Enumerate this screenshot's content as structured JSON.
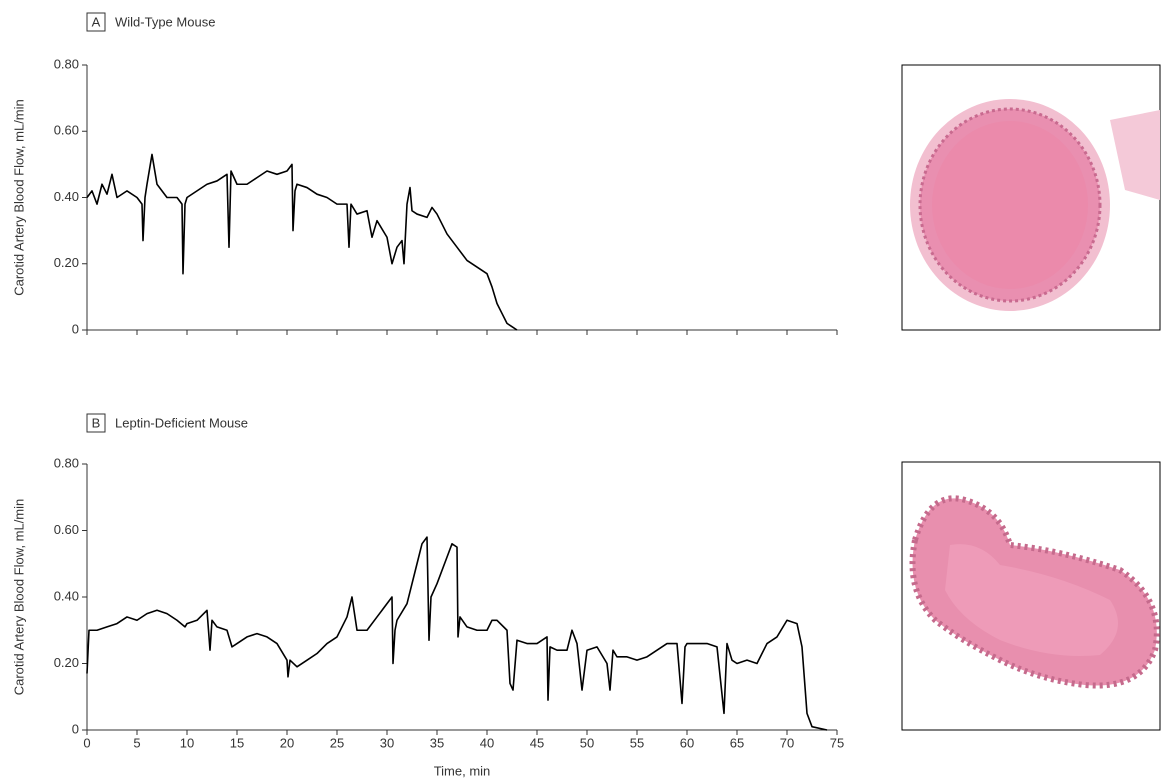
{
  "chart_data": [
    {
      "type": "line",
      "panel": "A",
      "title": "Wild-Type Mouse",
      "ylabel": "Carotid Artery Blood Flow, mL/min",
      "x": [
        0,
        0.5,
        1,
        1.5,
        2,
        2.5,
        3,
        4,
        5,
        5.5,
        5.6,
        5.8,
        6,
        6.5,
        7,
        8,
        9,
        9.5,
        9.6,
        9.8,
        10,
        11,
        12,
        13,
        14,
        14.2,
        14.4,
        15,
        16,
        17,
        18,
        19,
        20,
        20.5,
        20.6,
        20.8,
        21,
        22,
        23,
        24,
        25,
        26,
        26.2,
        26.4,
        27,
        28,
        28.5,
        29,
        30,
        30.5,
        31,
        31.5,
        31.7,
        32,
        32.3,
        32.5,
        33,
        34,
        34.5,
        35,
        36,
        37,
        38,
        39,
        40,
        40.5,
        41,
        41.5,
        42,
        42.5,
        43
      ],
      "values": [
        0.4,
        0.42,
        0.38,
        0.44,
        0.41,
        0.47,
        0.4,
        0.42,
        0.4,
        0.38,
        0.27,
        0.4,
        0.44,
        0.53,
        0.44,
        0.4,
        0.4,
        0.38,
        0.17,
        0.38,
        0.4,
        0.42,
        0.44,
        0.45,
        0.47,
        0.25,
        0.48,
        0.44,
        0.44,
        0.46,
        0.48,
        0.47,
        0.48,
        0.5,
        0.3,
        0.42,
        0.44,
        0.43,
        0.41,
        0.4,
        0.38,
        0.38,
        0.25,
        0.38,
        0.35,
        0.36,
        0.28,
        0.33,
        0.28,
        0.2,
        0.25,
        0.27,
        0.2,
        0.38,
        0.43,
        0.36,
        0.35,
        0.34,
        0.37,
        0.35,
        0.29,
        0.25,
        0.21,
        0.19,
        0.17,
        0.13,
        0.08,
        0.05,
        0.02,
        0.01,
        0
      ],
      "color": "#000000",
      "xlim": [
        0,
        75
      ],
      "xticks": [
        0,
        5,
        10,
        15,
        20,
        25,
        30,
        35,
        40,
        45,
        50,
        55,
        60,
        65,
        70,
        75
      ],
      "show_xtick_labels": false,
      "ylim": [
        0,
        0.8
      ],
      "yticks": [
        0,
        {
          "value": 0.2,
          "label": "0.20"
        },
        {
          "value": 0.4,
          "label": "0.40"
        },
        {
          "value": 0.6,
          "label": "0.60"
        },
        {
          "value": 0.8,
          "label": "0.80"
        }
      ]
    },
    {
      "type": "line",
      "panel": "B",
      "title": "Leptin-Deficient Mouse",
      "ylabel": "Carotid Artery Blood Flow, mL/min",
      "xlabel": "Time, min",
      "x": [
        0,
        0.2,
        1,
        2,
        3,
        4,
        5,
        6,
        7,
        8,
        9,
        9.8,
        10,
        11,
        12,
        12.3,
        12.5,
        13,
        14,
        14.5,
        15,
        16,
        17,
        18,
        19,
        20,
        20.1,
        20.3,
        21,
        22,
        23,
        24,
        25,
        26,
        26.5,
        27,
        28,
        29,
        30,
        30.5,
        30.6,
        30.8,
        31,
        32,
        33,
        33.5,
        34,
        34.2,
        34.4,
        35,
        36,
        36.5,
        37,
        37.1,
        37.3,
        38,
        39,
        40,
        40.5,
        41,
        42,
        42.3,
        42.6,
        43,
        44,
        45,
        46,
        46.1,
        46.3,
        47,
        48,
        48.5,
        49,
        49.5,
        50,
        51,
        52,
        52.3,
        52.6,
        53,
        54,
        55,
        56,
        57,
        58,
        59,
        59.5,
        59.8,
        60,
        61,
        62,
        63,
        63.7,
        64,
        64.5,
        65,
        66,
        67,
        67.5,
        68,
        69,
        70,
        71,
        71.5,
        72,
        72.5,
        74
      ],
      "values": [
        0.17,
        0.3,
        0.3,
        0.31,
        0.32,
        0.34,
        0.33,
        0.35,
        0.36,
        0.35,
        0.33,
        0.31,
        0.32,
        0.33,
        0.36,
        0.24,
        0.33,
        0.31,
        0.3,
        0.25,
        0.26,
        0.28,
        0.29,
        0.28,
        0.26,
        0.21,
        0.16,
        0.21,
        0.19,
        0.21,
        0.23,
        0.26,
        0.28,
        0.34,
        0.4,
        0.3,
        0.3,
        0.34,
        0.38,
        0.4,
        0.2,
        0.3,
        0.33,
        0.38,
        0.5,
        0.56,
        0.58,
        0.27,
        0.4,
        0.44,
        0.52,
        0.56,
        0.55,
        0.28,
        0.34,
        0.31,
        0.3,
        0.3,
        0.33,
        0.33,
        0.3,
        0.14,
        0.12,
        0.27,
        0.26,
        0.26,
        0.28,
        0.09,
        0.25,
        0.24,
        0.24,
        0.3,
        0.26,
        0.12,
        0.24,
        0.25,
        0.2,
        0.12,
        0.24,
        0.22,
        0.22,
        0.21,
        0.22,
        0.24,
        0.26,
        0.26,
        0.08,
        0.25,
        0.26,
        0.26,
        0.26,
        0.25,
        0.05,
        0.26,
        0.21,
        0.2,
        0.21,
        0.2,
        0.23,
        0.26,
        0.28,
        0.33,
        0.32,
        0.25,
        0.05,
        0.01,
        0
      ],
      "color": "#000000",
      "xlim": [
        0,
        75
      ],
      "xticks": [
        0,
        5,
        10,
        15,
        20,
        25,
        30,
        35,
        40,
        45,
        50,
        55,
        60,
        65,
        70,
        75
      ],
      "show_xtick_labels": true,
      "ylim": [
        0,
        0.8
      ],
      "yticks": [
        0,
        {
          "value": 0.2,
          "label": "0.20"
        },
        {
          "value": 0.4,
          "label": "0.40"
        },
        {
          "value": 0.6,
          "label": "0.60"
        },
        {
          "value": 0.8,
          "label": "0.80"
        }
      ]
    }
  ]
}
